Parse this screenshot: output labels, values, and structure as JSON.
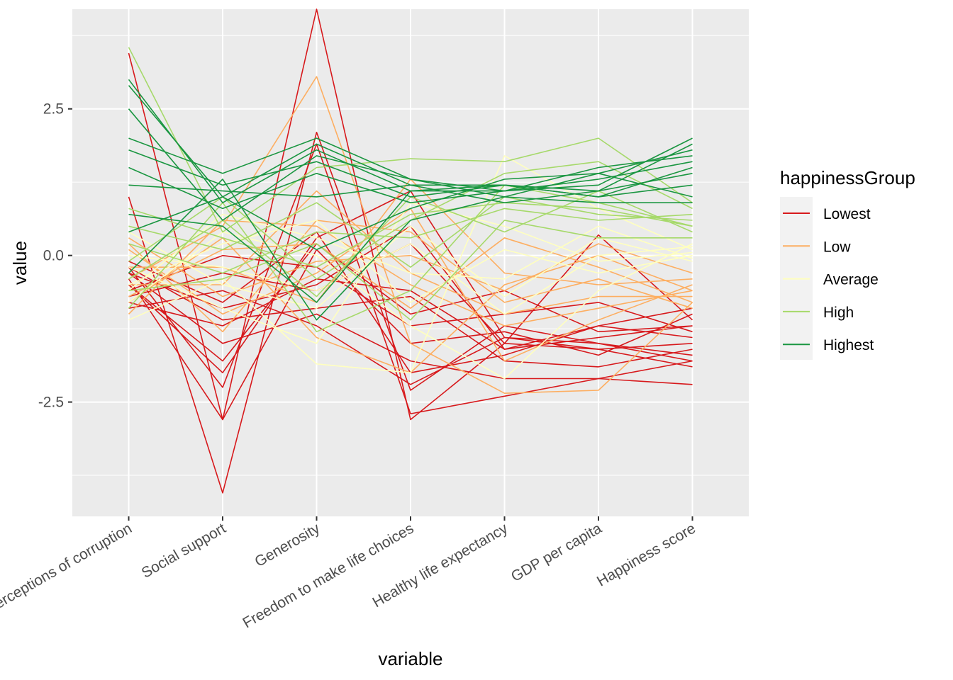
{
  "chart_data": {
    "type": "line",
    "xlabel": "variable",
    "ylabel": "value",
    "categories": [
      "Perceptions of corruption",
      "Social support",
      "Generosity",
      "Freedom to make life choices",
      "Healthy life expectancy",
      "GDP per capita",
      "Happiness score"
    ],
    "ylim": [
      -4.45,
      4.2
    ],
    "yticks": [
      -2.5,
      0.0,
      2.5
    ],
    "ytick_labels": [
      "-2.5",
      "0.0",
      "2.5"
    ],
    "grid": true,
    "legend": {
      "title": "happinessGroup",
      "position": "right",
      "entries": [
        {
          "label": "Lowest",
          "color": "#d7191c"
        },
        {
          "label": "Low",
          "color": "#fdae61"
        },
        {
          "label": "Average",
          "color": "#ffffbf"
        },
        {
          "label": "High",
          "color": "#a6d96a"
        },
        {
          "label": "Highest",
          "color": "#1a9641"
        }
      ]
    },
    "series": [
      {
        "group": "Lowest",
        "values": [
          3.45,
          -2.8,
          4.2,
          -2.8,
          -1.5,
          -1.6,
          -1.9
        ]
      },
      {
        "group": "Lowest",
        "values": [
          1.0,
          -4.05,
          2.1,
          -2.3,
          -1.2,
          -1.5,
          -1.7
        ]
      },
      {
        "group": "Lowest",
        "values": [
          -0.2,
          -2.25,
          1.9,
          -2.7,
          -2.4,
          -2.1,
          -2.2
        ]
      },
      {
        "group": "Lowest",
        "values": [
          -0.5,
          -2.0,
          0.3,
          1.1,
          -1.4,
          -1.6,
          -1.5
        ]
      },
      {
        "group": "Lowest",
        "values": [
          -0.8,
          -1.2,
          -0.4,
          -0.6,
          -1.6,
          -1.4,
          -1.2
        ]
      },
      {
        "group": "Lowest",
        "values": [
          -0.3,
          -1.5,
          -1.0,
          -1.8,
          -2.1,
          -2.1,
          -1.8
        ]
      },
      {
        "group": "Lowest",
        "values": [
          -0.6,
          0.0,
          -0.2,
          -1.2,
          -1.0,
          -0.8,
          -1.3
        ]
      },
      {
        "group": "Lowest",
        "values": [
          -0.1,
          -0.8,
          0.4,
          -2.0,
          -1.7,
          -1.2,
          -1.4
        ]
      },
      {
        "group": "Lowest",
        "values": [
          -0.4,
          -2.8,
          0.1,
          -1.5,
          -1.3,
          -1.7,
          -1.0
        ]
      },
      {
        "group": "Lowest",
        "values": [
          -0.7,
          -0.3,
          -0.6,
          0.2,
          -1.5,
          0.35,
          -1.1
        ]
      },
      {
        "group": "Lowest",
        "values": [
          -0.2,
          -1.1,
          -0.9,
          -0.7,
          -1.8,
          -1.9,
          -1.6
        ]
      },
      {
        "group": "Lowest",
        "values": [
          -0.5,
          -1.8,
          0.2,
          -1.0,
          -0.6,
          -1.3,
          -1.2
        ]
      },
      {
        "group": "Lowest",
        "values": [
          -0.9,
          -0.6,
          -1.2,
          -2.2,
          -1.4,
          -1.5,
          -1.8
        ]
      },
      {
        "group": "Lowest",
        "values": [
          -0.3,
          -0.9,
          -0.5,
          0.5,
          -1.6,
          -1.2,
          -0.9
        ]
      },
      {
        "group": "Low",
        "values": [
          -0.4,
          0.5,
          3.05,
          -1.5,
          -2.35,
          -2.3,
          -0.8
        ]
      },
      {
        "group": "Low",
        "values": [
          0.2,
          -1.3,
          0.6,
          0.4,
          -0.8,
          -0.4,
          -0.9
        ]
      },
      {
        "group": "Low",
        "values": [
          -0.8,
          0.3,
          -1.4,
          -2.0,
          -0.5,
          0.0,
          -0.6
        ]
      },
      {
        "group": "Low",
        "values": [
          -0.5,
          -0.5,
          1.1,
          -0.3,
          -1.0,
          -0.7,
          -0.7
        ]
      },
      {
        "group": "Low",
        "values": [
          0.1,
          -1.0,
          -0.3,
          0.8,
          -1.8,
          -1.1,
          -0.5
        ]
      },
      {
        "group": "Low",
        "values": [
          -0.7,
          0.1,
          0.2,
          -0.9,
          0.3,
          -0.2,
          -0.8
        ]
      },
      {
        "group": "Low",
        "values": [
          -0.2,
          -0.2,
          -0.8,
          1.3,
          -0.3,
          -0.5,
          -0.4
        ]
      },
      {
        "group": "Low",
        "values": [
          -1.0,
          0.6,
          0.5,
          -0.5,
          -1.2,
          -0.9,
          -0.6
        ]
      },
      {
        "group": "Low",
        "values": [
          0.3,
          -0.7,
          -0.1,
          0.0,
          -0.6,
          0.2,
          -0.3
        ]
      },
      {
        "group": "Average",
        "values": [
          -1.1,
          -0.4,
          -1.85,
          -2.0,
          1.7,
          0.8,
          0.1
        ]
      },
      {
        "group": "Average",
        "values": [
          -0.5,
          0.2,
          0.6,
          -0.8,
          0.1,
          -0.3,
          0.0
        ]
      },
      {
        "group": "Average",
        "values": [
          0.4,
          -0.5,
          -0.9,
          0.5,
          -0.7,
          0.3,
          -0.1
        ]
      },
      {
        "group": "Average",
        "values": [
          -0.8,
          0.4,
          0.0,
          -1.2,
          -2.1,
          -0.6,
          0.2
        ]
      },
      {
        "group": "Average",
        "values": [
          -0.2,
          -0.9,
          -1.5,
          0.9,
          0.5,
          -0.1,
          0.05
        ]
      },
      {
        "group": "Average",
        "values": [
          -0.6,
          0.7,
          0.3,
          -0.3,
          -0.4,
          0.5,
          -0.05
        ]
      },
      {
        "group": "Average",
        "values": [
          0.0,
          -0.2,
          -0.6,
          0.2,
          -1.0,
          0.0,
          0.15
        ]
      },
      {
        "group": "High",
        "values": [
          3.55,
          0.4,
          1.5,
          1.65,
          1.6,
          2.0,
          0.9
        ]
      },
      {
        "group": "High",
        "values": [
          -0.9,
          0.9,
          -1.3,
          -0.6,
          1.2,
          0.9,
          0.5
        ]
      },
      {
        "group": "High",
        "values": [
          0.2,
          -0.3,
          0.4,
          0.3,
          0.8,
          0.6,
          0.7
        ]
      },
      {
        "group": "High",
        "values": [
          -0.4,
          0.6,
          -0.7,
          1.0,
          0.4,
          1.1,
          0.4
        ]
      },
      {
        "group": "High",
        "values": [
          0.5,
          0.1,
          0.9,
          -0.2,
          1.0,
          0.7,
          0.6
        ]
      },
      {
        "group": "High",
        "values": [
          -0.1,
          1.0,
          -0.4,
          0.6,
          1.4,
          1.6,
          0.8
        ]
      },
      {
        "group": "High",
        "values": [
          -0.6,
          -0.4,
          0.2,
          -1.1,
          0.6,
          0.3,
          0.3
        ]
      },
      {
        "group": "High",
        "values": [
          0.8,
          0.3,
          -0.2,
          0.7,
          0.9,
          0.8,
          0.5
        ]
      },
      {
        "group": "Highest",
        "values": [
          2.9,
          1.0,
          1.9,
          1.2,
          1.2,
          1.1,
          1.9
        ]
      },
      {
        "group": "Highest",
        "values": [
          3.0,
          0.9,
          1.8,
          1.1,
          1.1,
          1.2,
          2.0
        ]
      },
      {
        "group": "Highest",
        "values": [
          2.0,
          1.4,
          2.0,
          1.3,
          1.0,
          1.4,
          1.8
        ]
      },
      {
        "group": "Highest",
        "values": [
          1.8,
          1.2,
          1.6,
          1.0,
          1.2,
          1.0,
          1.5
        ]
      },
      {
        "group": "Highest",
        "values": [
          1.5,
          0.8,
          1.4,
          0.9,
          1.1,
          1.3,
          1.6
        ]
      },
      {
        "group": "Highest",
        "values": [
          1.2,
          1.1,
          1.0,
          1.2,
          0.9,
          1.1,
          1.4
        ]
      },
      {
        "group": "Highest",
        "values": [
          0.7,
          0.5,
          -0.8,
          1.1,
          1.2,
          1.0,
          1.2
        ]
      },
      {
        "group": "Highest",
        "values": [
          0.4,
          1.0,
          0.1,
          0.8,
          1.3,
          1.4,
          1.0
        ]
      },
      {
        "group": "Highest",
        "values": [
          2.5,
          0.6,
          1.7,
          1.3,
          1.1,
          1.5,
          1.7
        ]
      },
      {
        "group": "Highest",
        "values": [
          -0.3,
          1.3,
          -1.1,
          0.6,
          1.0,
          0.9,
          0.9
        ]
      }
    ]
  }
}
